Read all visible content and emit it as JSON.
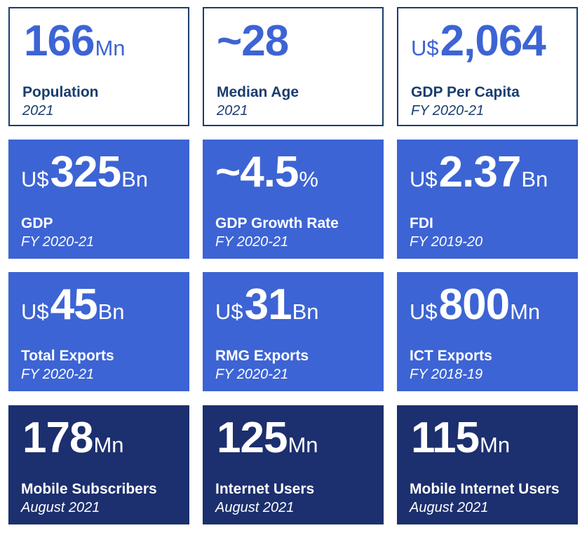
{
  "colors": {
    "outline_border": "#1a3d6e",
    "accent_blue": "#3d64d4",
    "dark_navy": "#1c2f6e",
    "label_navy": "#1a3d6e"
  },
  "cards": [
    {
      "prefix": "",
      "value": "166",
      "suffix": "Mn",
      "label": "Population",
      "sub": "2021"
    },
    {
      "prefix": "~",
      "value": "28",
      "suffix": "",
      "label": "Median Age",
      "sub": "2021"
    },
    {
      "prefix": "U$",
      "value": "2,064",
      "suffix": "",
      "label": "GDP Per Capita",
      "sub": "FY 2020-21"
    },
    {
      "prefix": "U$",
      "value": "325",
      "suffix": "Bn",
      "label": "GDP",
      "sub": "FY 2020-21"
    },
    {
      "prefix": "~",
      "value": "4.5",
      "suffix": "%",
      "label": "GDP Growth Rate",
      "sub": "FY 2020-21"
    },
    {
      "prefix": "U$",
      "value": "2.37",
      "suffix": "Bn",
      "label": "FDI",
      "sub": "FY 2019-20"
    },
    {
      "prefix": "U$",
      "value": "45",
      "suffix": "Bn",
      "label": "Total Exports",
      "sub": "FY 2020-21"
    },
    {
      "prefix": "U$",
      "value": "31",
      "suffix": "Bn",
      "label": "RMG Exports",
      "sub": "FY 2020-21"
    },
    {
      "prefix": "U$",
      "value": "800",
      "suffix": "Mn",
      "label": "ICT Exports",
      "sub": "FY 2018-19"
    },
    {
      "prefix": "",
      "value": "178",
      "suffix": "Mn",
      "label": "Mobile Subscribers",
      "sub": "August 2021"
    },
    {
      "prefix": "",
      "value": "125",
      "suffix": "Mn",
      "label": "Internet Users",
      "sub": "August 2021"
    },
    {
      "prefix": "",
      "value": "115",
      "suffix": "Mn",
      "label": "Mobile Internet Users",
      "sub": "August 2021"
    }
  ]
}
